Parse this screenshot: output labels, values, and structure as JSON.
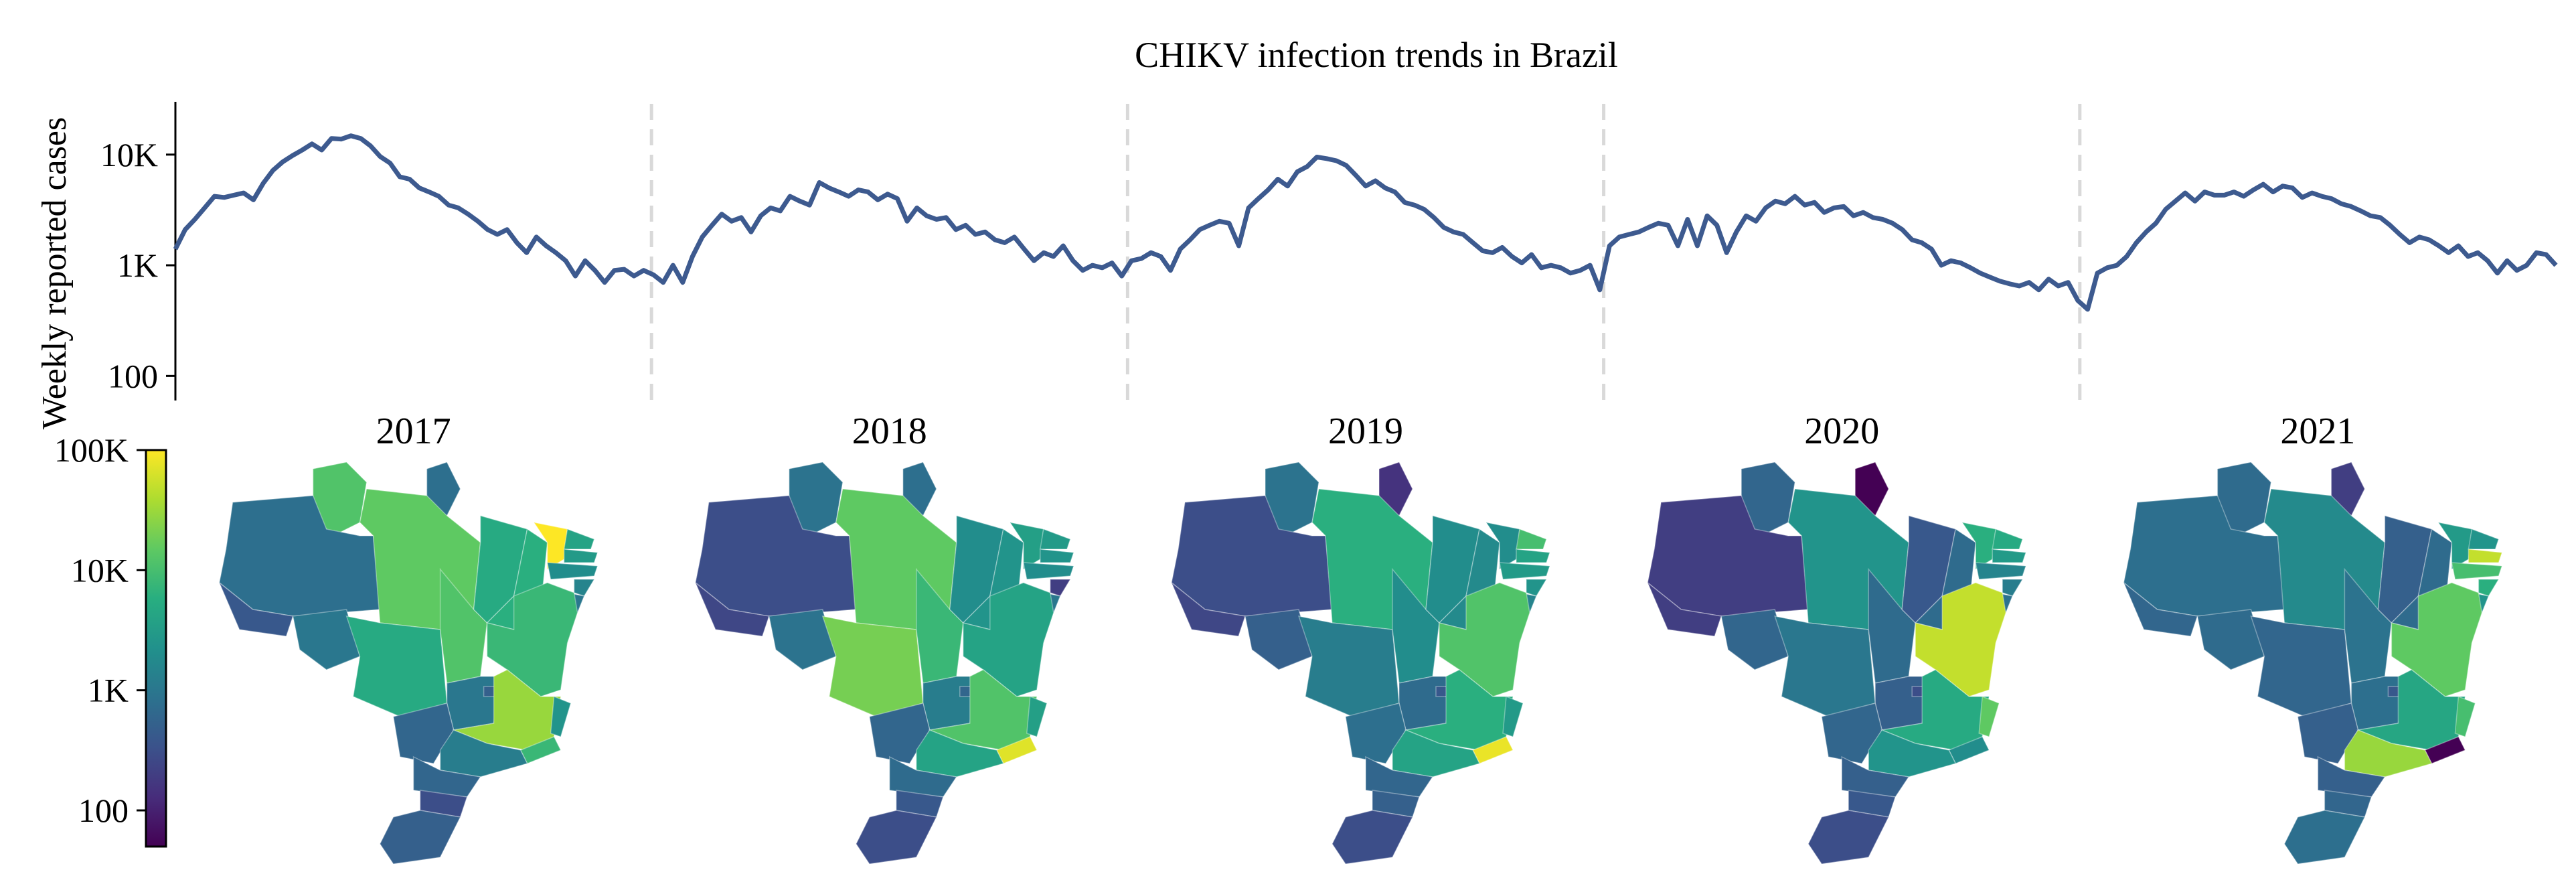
{
  "chart_data": [
    {
      "type": "line",
      "title": "CHIKV infection trends in Brazil",
      "ylabel": "Weekly reported cases",
      "yscale": "log",
      "ylim": [
        60,
        30000
      ],
      "yticks": [
        100,
        1000,
        10000
      ],
      "ytick_labels": [
        "100",
        "1K",
        "10K"
      ],
      "grid": false,
      "year_separators": true,
      "colors": {
        "line": "#3d5a8f",
        "separator": "#d9d9d9"
      },
      "series": [
        {
          "values": [
            1400,
            2100,
            2600,
            3300,
            4200,
            4100,
            4300,
            4500,
            3900,
            5500,
            7200,
            8600,
            9800,
            11000,
            12500,
            11000,
            14000,
            13800,
            14800,
            14000,
            12000,
            9600,
            8400,
            6300,
            6000,
            5000,
            4600,
            4200,
            3500,
            3300,
            2900,
            2500,
            2100,
            1900,
            2100,
            1600,
            1300,
            1800,
            1500,
            1300,
            1100,
            800,
            1100,
            900,
            700,
            900,
            920,
            800,
            900,
            820,
            700,
            1000,
            700,
            1200,
            1800,
            2300,
            2900,
            2500,
            2700,
            2000,
            2800,
            3300,
            3100,
            4200,
            3800,
            3500,
            5600,
            5000,
            4600,
            4200,
            4800,
            4600,
            3900,
            4400,
            4000,
            2500,
            3300,
            2800,
            2600,
            2700,
            2100,
            2300,
            1900,
            2000,
            1700,
            1600,
            1800,
            1400,
            1100,
            1300,
            1200,
            1500,
            1100,
            900,
            1000,
            950,
            1050,
            800,
            1100,
            1150,
            1300,
            1200,
            900,
            1400,
            1700,
            2100,
            2300,
            2500,
            2400,
            1500,
            3300,
            4000,
            4800,
            6000,
            5200,
            7000,
            7800,
            9500,
            9200,
            8800,
            8000,
            6500,
            5200,
            5800,
            5000,
            4600,
            3700,
            3500,
            3200,
            2700,
            2200,
            2000,
            1900,
            1600,
            1350,
            1300,
            1450,
            1200,
            1050,
            1250,
            950,
            1000,
            950,
            850,
            900,
            1000,
            600,
            1500,
            1800,
            1900,
            2000,
            2200,
            2400,
            2300,
            1500,
            2600,
            1500,
            2800,
            2300,
            1300,
            2000,
            2800,
            2500,
            3300,
            3800,
            3600,
            4200,
            3500,
            3700,
            3000,
            3300,
            3400,
            2800,
            3000,
            2700,
            2600,
            2400,
            2100,
            1700,
            1600,
            1400,
            1000,
            1100,
            1050,
            950,
            850,
            780,
            720,
            680,
            650,
            700,
            600,
            750,
            650,
            700,
            480,
            400,
            850,
            950,
            1000,
            1200,
            1600,
            2000,
            2400,
            3200,
            3800,
            4500,
            3800,
            4600,
            4300,
            4300,
            4600,
            4200,
            4800,
            5400,
            4600,
            5200,
            5000,
            4100,
            4500,
            4200,
            4000,
            3600,
            3400,
            3100,
            2800,
            2700,
            2300,
            1900,
            1600,
            1800,
            1700,
            1500,
            1300,
            1500,
            1200,
            1300,
            1100,
            850,
            1100,
            900,
            1000,
            1300,
            1250,
            1000
          ]
        }
      ]
    },
    {
      "type": "heatmap",
      "years": [
        "2017",
        "2018",
        "2019",
        "2020",
        "2021"
      ],
      "colormap": "viridis",
      "colorbar": {
        "scale": "log",
        "range": [
          50,
          100000
        ],
        "ticks": [
          100,
          1000,
          10000,
          100000
        ],
        "tick_labels": [
          "100",
          "1K",
          "10K",
          "100K"
        ]
      },
      "regions": [
        "RR",
        "AP",
        "AM",
        "PA",
        "AC",
        "RO",
        "MT",
        "TO",
        "MA",
        "PI",
        "CE",
        "RN",
        "PB",
        "PE",
        "AL",
        "SE",
        "BA",
        "GO",
        "DF",
        "MS",
        "MG",
        "ES",
        "RJ",
        "SP",
        "PR",
        "SC",
        "RS"
      ],
      "values": {
        "2017": {
          "RR": 12000,
          "AP": 800,
          "AM": 800,
          "PA": 15000,
          "AC": 400,
          "RO": 1000,
          "MT": 5000,
          "TO": 12000,
          "MA": 5000,
          "PI": 6000,
          "CE": 100000,
          "RN": 4000,
          "PB": 3000,
          "PE": 2000,
          "AL": 1500,
          "SE": 1000,
          "BA": 8000,
          "GO": 1000,
          "DF": 500,
          "MS": 600,
          "MG": 30000,
          "ES": 2500,
          "RJ": 8000,
          "SP": 1200,
          "PR": 600,
          "SC": 300,
          "RS": 500
        },
        "2018": {
          "RR": 900,
          "AP": 800,
          "AM": 300,
          "PA": 15000,
          "AC": 250,
          "RO": 900,
          "MT": 20000,
          "TO": 8000,
          "MA": 2000,
          "PI": 2500,
          "CE": 3500,
          "RN": 3000,
          "PB": 2500,
          "PE": 2000,
          "AL": 200,
          "SE": 1000,
          "BA": 4000,
          "GO": 1200,
          "DF": 600,
          "MS": 600,
          "MG": 12000,
          "ES": 3500,
          "RJ": 70000,
          "SP": 4000,
          "PR": 700,
          "SC": 400,
          "RS": 300
        },
        "2019": {
          "RR": 900,
          "AP": 150,
          "AM": 300,
          "PA": 6000,
          "AC": 250,
          "RO": 500,
          "MT": 1200,
          "TO": 2000,
          "MA": 2000,
          "PI": 1800,
          "CE": 2000,
          "RN": 10000,
          "PB": 4000,
          "PE": 3000,
          "AL": 2500,
          "SE": 1500,
          "BA": 12000,
          "GO": 700,
          "DF": 400,
          "MS": 800,
          "MG": 6000,
          "ES": 3000,
          "RJ": 80000,
          "SP": 4000,
          "PR": 600,
          "SC": 500,
          "RS": 300
        },
        "2020": {
          "RR": 600,
          "AP": 50,
          "AM": 200,
          "PA": 2500,
          "AC": 200,
          "RO": 600,
          "MT": 1000,
          "TO": 700,
          "MA": 400,
          "PI": 700,
          "CE": 6000,
          "RN": 5000,
          "PB": 3000,
          "PE": 1500,
          "AL": 1200,
          "SE": 900,
          "BA": 50000,
          "GO": 500,
          "DF": 300,
          "MS": 600,
          "MG": 5000,
          "ES": 15000,
          "RJ": 2000,
          "SP": 2500,
          "PR": 500,
          "SC": 400,
          "RS": 300
        },
        "2021": {
          "RR": 700,
          "AP": 200,
          "AM": 800,
          "PA": 1800,
          "AC": 600,
          "RO": 700,
          "MT": 600,
          "TO": 900,
          "MA": 500,
          "PI": 700,
          "CE": 3000,
          "RN": 2500,
          "PB": 50000,
          "PE": 10000,
          "AL": 6000,
          "SE": 2500,
          "BA": 15000,
          "GO": 800,
          "DF": 400,
          "MS": 500,
          "MG": 4500,
          "ES": 10000,
          "RJ": 50,
          "SP": 30000,
          "PR": 500,
          "SC": 600,
          "RS": 800
        }
      }
    }
  ]
}
